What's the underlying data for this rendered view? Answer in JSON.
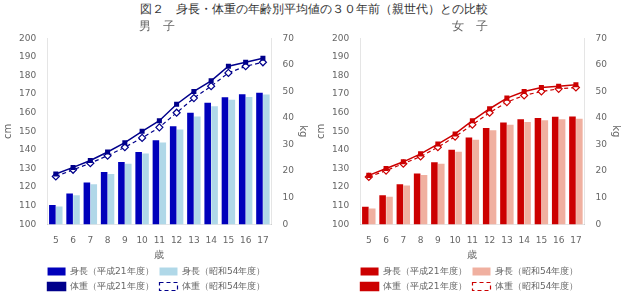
{
  "title": "図２　身長・体重の年齢別平均値の３０年前（親世代）との比較",
  "chart_data": [
    {
      "type": "bar",
      "subtitle": "男　子",
      "categories": [
        5,
        6,
        7,
        8,
        9,
        10,
        11,
        12,
        13,
        14,
        15,
        16,
        17
      ],
      "x_label": "歳",
      "y_label": "cm",
      "y2_label": "kg",
      "ylim": [
        100,
        200
      ],
      "yticks": [
        100,
        110,
        120,
        130,
        140,
        150,
        160,
        170,
        180,
        190,
        200
      ],
      "y2lim": [
        0,
        70
      ],
      "y2ticks": [
        0,
        10,
        20,
        30,
        40,
        50,
        60,
        70
      ],
      "grid": false,
      "legend": "bottom",
      "series": [
        {
          "name": "身長（平成21年度）",
          "type": "bar",
          "color": "#0000BB",
          "values": [
            110.4,
            116.5,
            122.5,
            128.1,
            133.5,
            138.8,
            145.2,
            152.7,
            160.0,
            165.3,
            168.3,
            169.9,
            170.7
          ]
        },
        {
          "name": "身長（昭和54年度）",
          "type": "bar",
          "color": "#B0D8E8",
          "values": [
            109.5,
            115.6,
            121.5,
            127.0,
            132.5,
            138.0,
            144.0,
            151.0,
            158.0,
            163.5,
            167.0,
            168.5,
            169.8
          ]
        },
        {
          "name": "体重（平成21年度）",
          "type": "line",
          "axis": "y2",
          "color": "#00008B",
          "marker": "square",
          "line_style": "solid",
          "values": [
            18.9,
            21.4,
            24.0,
            27.2,
            30.7,
            35.0,
            39.0,
            45.2,
            50.0,
            54.0,
            59.5,
            61.0,
            62.5
          ]
        },
        {
          "name": "体重（昭和54年度）",
          "type": "line",
          "axis": "y2",
          "color": "#00008B",
          "marker": "diamond",
          "line_style": "dashed",
          "values": [
            18.0,
            20.5,
            23.0,
            25.8,
            29.0,
            32.5,
            36.5,
            42.0,
            47.5,
            52.0,
            57.0,
            59.5,
            61.0
          ]
        }
      ]
    },
    {
      "type": "bar",
      "subtitle": "女　子",
      "categories": [
        5,
        6,
        7,
        8,
        9,
        10,
        11,
        12,
        13,
        14,
        15,
        16,
        17
      ],
      "x_label": "歳",
      "y_label": "cm",
      "y2_label": "kg",
      "ylim": [
        100,
        200
      ],
      "yticks": [
        100,
        110,
        120,
        130,
        140,
        150,
        160,
        170,
        180,
        190,
        200
      ],
      "y2lim": [
        0,
        70
      ],
      "y2ticks": [
        0,
        10,
        20,
        30,
        40,
        50,
        60,
        70
      ],
      "grid": false,
      "legend": "bottom",
      "series": [
        {
          "name": "身長（平成21年度）",
          "type": "bar",
          "color": "#CC0000",
          "values": [
            109.4,
            115.6,
            121.5,
            127.3,
            133.4,
            140.1,
            146.6,
            151.8,
            154.8,
            156.5,
            157.2,
            157.8,
            157.9
          ]
        },
        {
          "name": "身長（昭和54年度）",
          "type": "bar",
          "color": "#F0B0A0",
          "values": [
            108.5,
            114.8,
            120.8,
            126.5,
            132.5,
            139.0,
            145.5,
            150.5,
            153.5,
            155.0,
            156.0,
            156.5,
            156.8
          ]
        },
        {
          "name": "体重（平成21年度）",
          "type": "line",
          "axis": "y2",
          "color": "#CC0000",
          "marker": "square",
          "line_style": "solid",
          "values": [
            18.4,
            21.0,
            23.5,
            26.5,
            30.2,
            34.0,
            39.0,
            43.5,
            47.5,
            50.0,
            51.5,
            52.0,
            52.5
          ]
        },
        {
          "name": "体重（昭和54年度）",
          "type": "line",
          "axis": "y2",
          "color": "#CC0000",
          "marker": "diamond",
          "line_style": "dashed",
          "values": [
            17.8,
            20.2,
            22.8,
            25.5,
            29.0,
            33.0,
            37.5,
            42.0,
            46.0,
            48.5,
            50.0,
            51.0,
            51.5
          ]
        }
      ]
    }
  ]
}
